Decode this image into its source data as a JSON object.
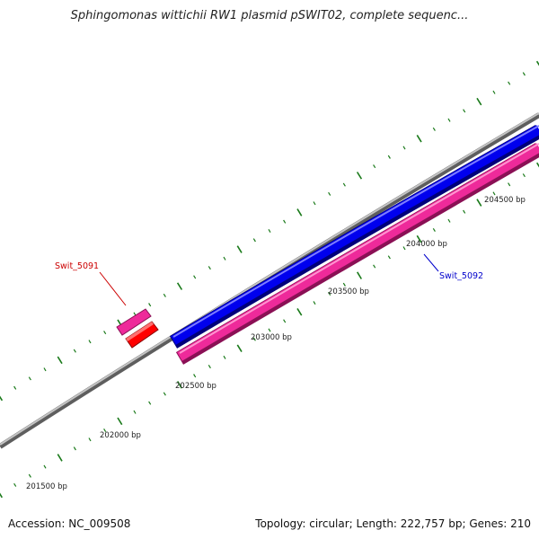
{
  "title": "Sphingomonas wittichii RW1 plasmid pSWIT02, complete sequenc...",
  "footer": {
    "accession": "Accession: NC_009508",
    "summary": "Topology: circular; Length: 222,757 bp; Genes: 210"
  },
  "ruler_labels": [
    "201500 bp",
    "202000 bp",
    "202500 bp",
    "203000 bp",
    "203500 bp",
    "204000 bp",
    "204500 bp"
  ],
  "genes": [
    {
      "name": "Swit_5091",
      "color": "#dd0000",
      "label_color": "#cc0000"
    },
    {
      "name": "Swit_5092",
      "color": "#0000ee",
      "label_color": "#0000cc"
    }
  ],
  "colors": {
    "backbone": "#888888",
    "forward_strand": "#0000ee",
    "reverse_strand": "#ee2a9a",
    "ticks": "#1a7a1a"
  }
}
